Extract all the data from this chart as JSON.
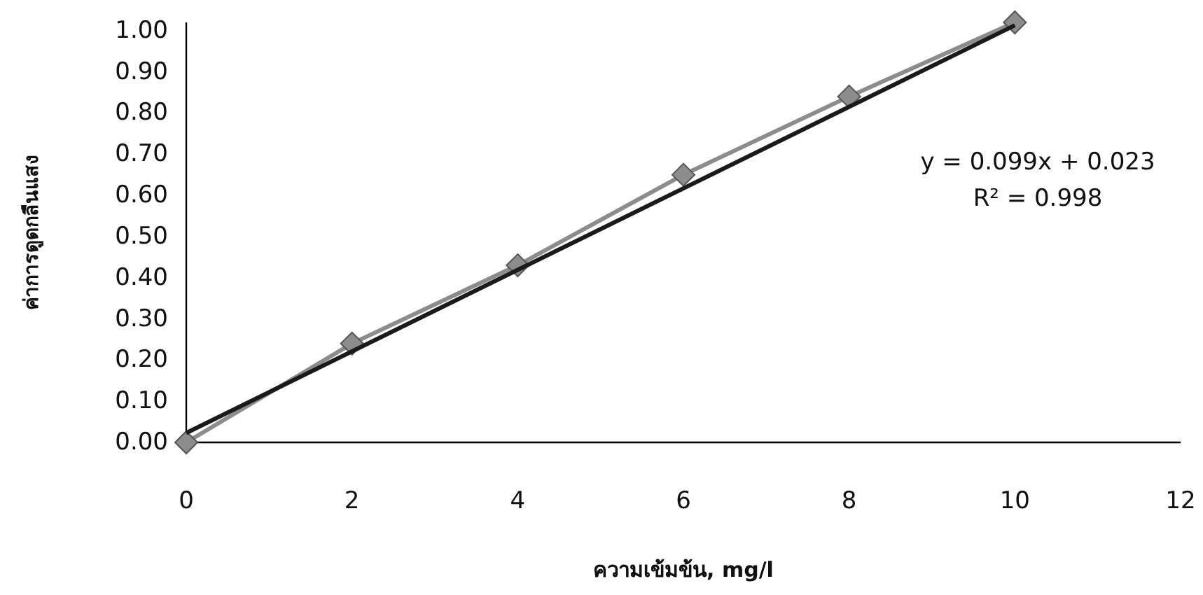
{
  "chart_data": {
    "type": "line",
    "xlabel": "ความเข้มข้น, mg/l",
    "ylabel": "ค่าการดูดกลืนแสง",
    "xlim": [
      0,
      12
    ],
    "xticks": [
      0,
      2,
      4,
      6,
      8,
      10,
      12
    ],
    "ylim": [
      0,
      1.02
    ],
    "yticks": [
      {
        "value": 0,
        "label": "0.00"
      },
      {
        "value": 0.1,
        "label": "0.10"
      },
      {
        "value": 0.2,
        "label": "0.20"
      },
      {
        "value": 0.3,
        "label": "0.30"
      },
      {
        "value": 0.4,
        "label": "0.40"
      },
      {
        "value": 0.5,
        "label": "0.50"
      },
      {
        "value": 0.6,
        "label": "0.60"
      },
      {
        "value": 0.7,
        "label": "0.70"
      },
      {
        "value": 0.8,
        "label": "0.80"
      },
      {
        "value": 0.9,
        "label": "0.90"
      },
      {
        "value": 1,
        "label": "1.00"
      }
    ],
    "series": [
      {
        "color": "#8c8c8c",
        "marker": "diamond",
        "x": [
          0,
          2,
          4,
          6,
          8,
          10
        ],
        "values": [
          0,
          0.24,
          0.43,
          0.65,
          0.84,
          1.02
        ]
      },
      {
        "color": "#1a1a1a",
        "marker": "none",
        "x": [
          0,
          10
        ],
        "values": [
          0.023,
          1.013
        ]
      }
    ],
    "annotations": [
      "y = 0.099x + 0.023",
      "R² = 0.998"
    ],
    "grid": false
  }
}
